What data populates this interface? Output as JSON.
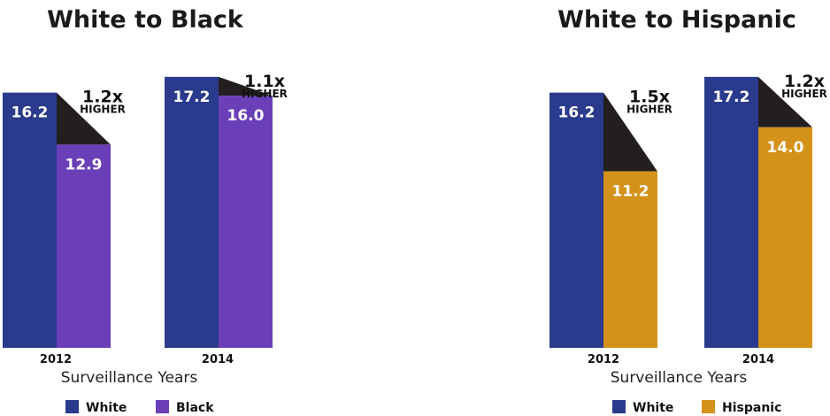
{
  "chart_data": [
    {
      "type": "bar",
      "title": "White to Black",
      "xlabel": "Surveillance Years",
      "ylabel": "",
      "categories": [
        "2012",
        "2014"
      ],
      "ylim": [
        0,
        20
      ],
      "series": [
        {
          "name": "White",
          "values": [
            16.2,
            17.2
          ],
          "color": "#2a3a8c"
        },
        {
          "name": "Black",
          "values": [
            12.9,
            16.0
          ],
          "color": "#6a3fb7"
        }
      ],
      "annotations": [
        {
          "ratio": "1.2x",
          "label": "HIGHER"
        },
        {
          "ratio": "1.1x",
          "label": "HIGHER"
        }
      ],
      "gap_color": "#231f20",
      "legend_position": "bottom"
    },
    {
      "type": "bar",
      "title": "White to Hispanic",
      "xlabel": "Surveillance Years",
      "ylabel": "",
      "categories": [
        "2012",
        "2014"
      ],
      "ylim": [
        0,
        20
      ],
      "series": [
        {
          "name": "White",
          "values": [
            16.2,
            17.2
          ],
          "color": "#2a3a8c"
        },
        {
          "name": "Hispanic",
          "values": [
            11.2,
            14.0
          ],
          "color": "#d4921a"
        }
      ],
      "annotations": [
        {
          "ratio": "1.5x",
          "label": "HIGHER"
        },
        {
          "ratio": "1.2x",
          "label": "HIGHER"
        }
      ],
      "gap_color": "#231f20",
      "legend_position": "bottom"
    }
  ]
}
